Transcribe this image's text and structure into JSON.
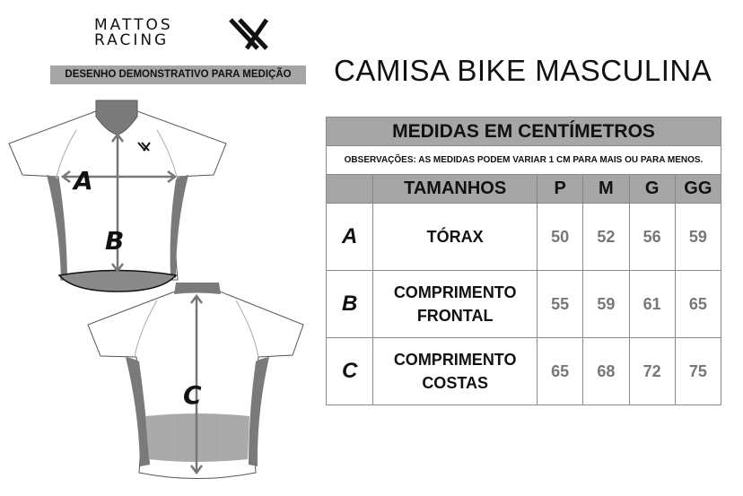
{
  "brand": {
    "line1": "MATTOS",
    "line2": "RACING"
  },
  "banner": "DESENHO DEMONSTRATIVO PARA MEDIÇÃO",
  "title": "CAMISA BIKE MASCULINA",
  "diagram_labels": {
    "a": "A",
    "b": "B",
    "c": "C"
  },
  "table": {
    "heading": "MEDIDAS EM CENTÍMETROS",
    "note": "OBSERVAÇÕES: AS MEDIDAS PODEM VARIAR 1 CM PARA MAIS OU PARA MENOS.",
    "size_header": "TAMANHOS",
    "sizes": [
      "P",
      "M",
      "G",
      "GG"
    ],
    "rows": [
      {
        "letter": "A",
        "line1": "TÓRAX",
        "line2": "",
        "values": [
          "50",
          "52",
          "56",
          "59"
        ]
      },
      {
        "letter": "B",
        "line1": "COMPRIMENTO",
        "line2": "FRONTAL",
        "values": [
          "55",
          "59",
          "61",
          "65"
        ]
      },
      {
        "letter": "C",
        "line1": "COMPRIMENTO",
        "line2": "COSTAS",
        "values": [
          "65",
          "68",
          "72",
          "75"
        ]
      }
    ]
  },
  "colors": {
    "header_gray": "#a6a6a6",
    "accent_gray": "#7a7a7a",
    "value_text": "#777777"
  }
}
